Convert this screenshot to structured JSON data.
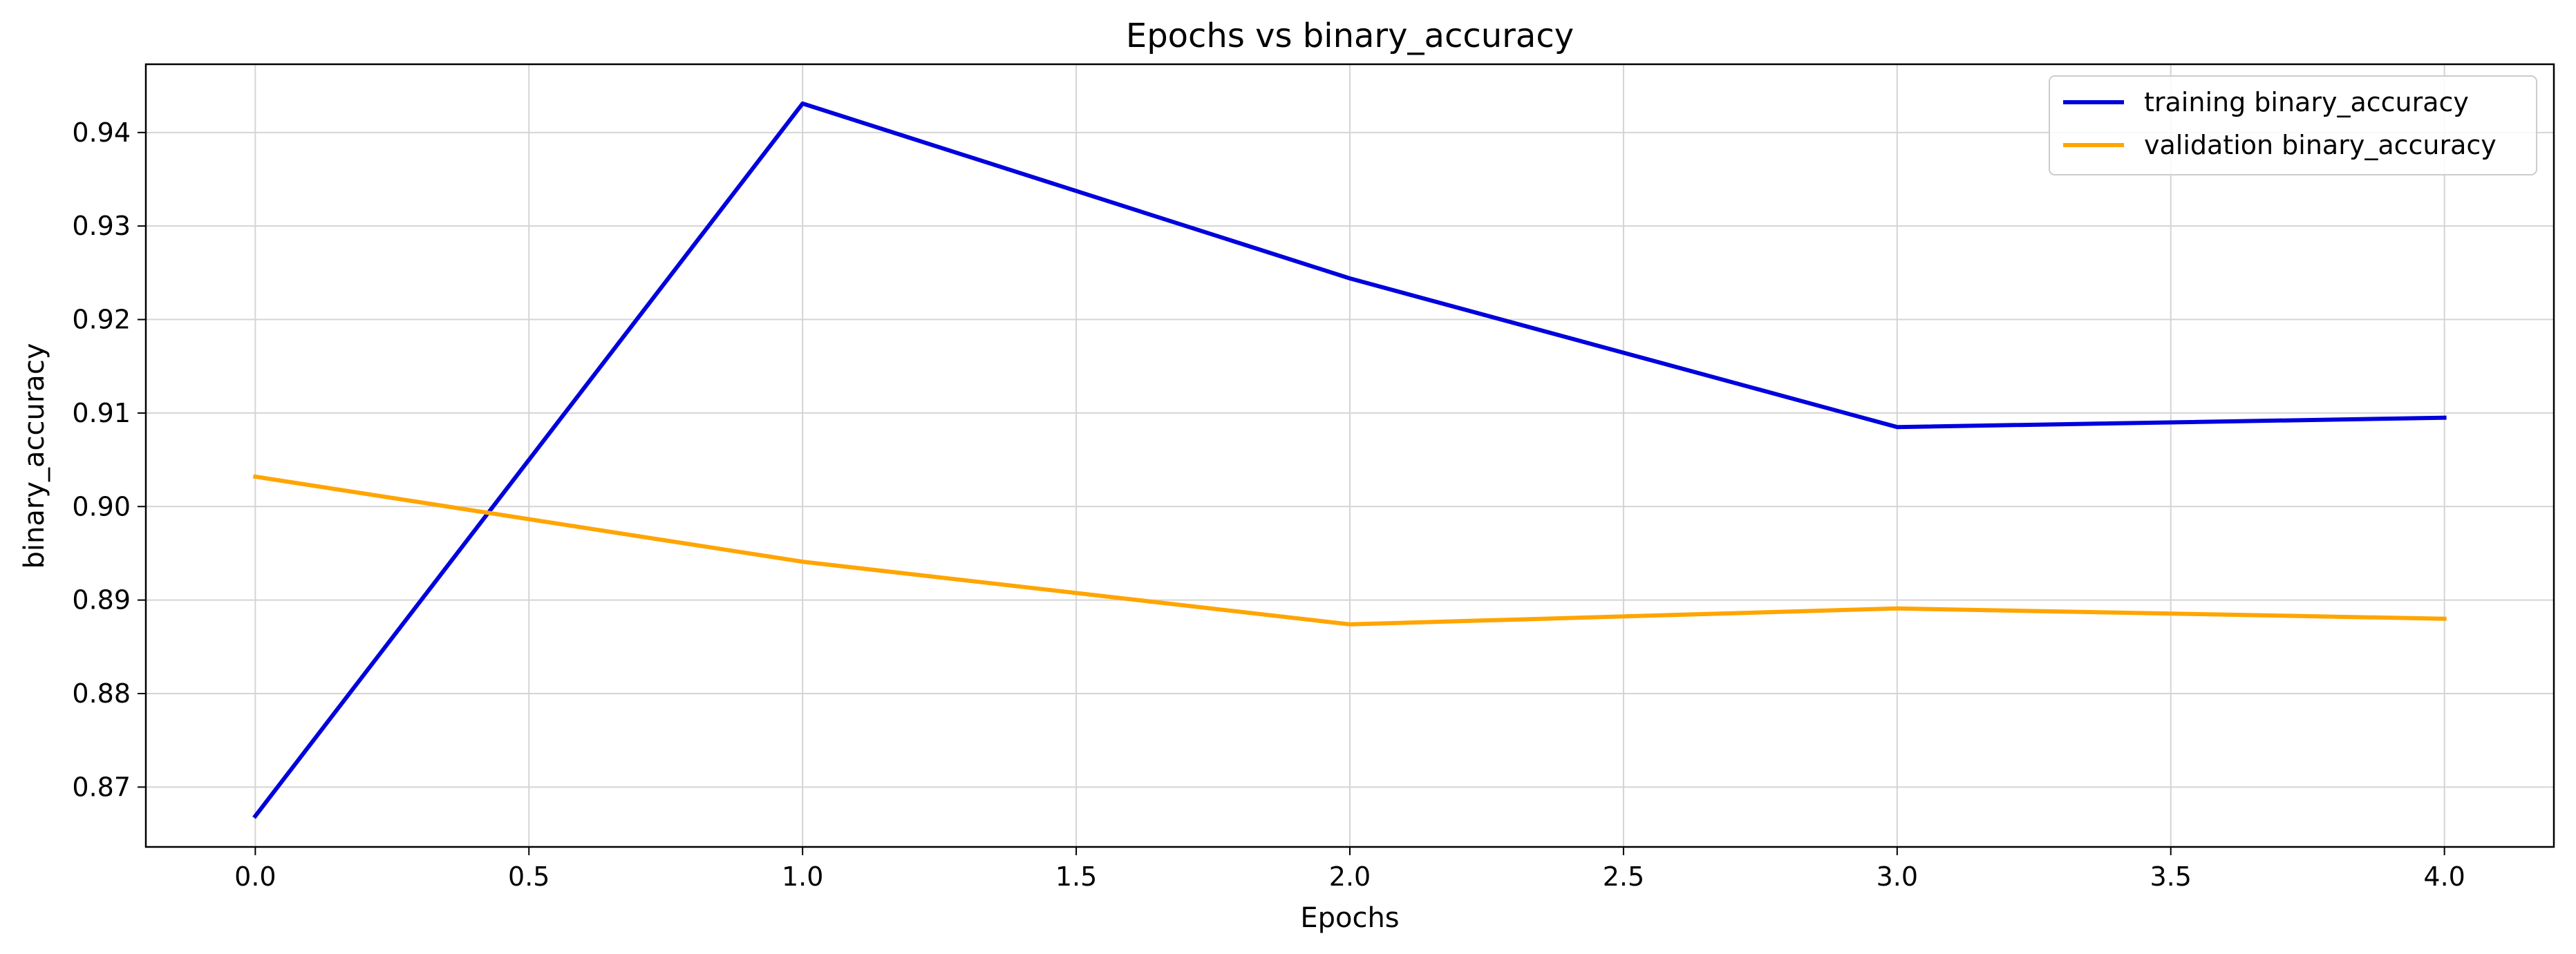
{
  "chart_data": {
    "type": "line",
    "title": "Epochs vs binary_accuracy",
    "xlabel": "Epochs",
    "ylabel": "binary_accuracy",
    "xlim": [
      -0.2,
      4.2
    ],
    "ylim": [
      0.8636,
      0.9473
    ],
    "x_ticks": [
      0.0,
      0.5,
      1.0,
      1.5,
      2.0,
      2.5,
      3.0,
      3.5,
      4.0
    ],
    "x_tick_labels": [
      "0.0",
      "0.5",
      "1.0",
      "1.5",
      "2.0",
      "2.5",
      "3.0",
      "3.5",
      "4.0"
    ],
    "y_ticks": [
      0.87,
      0.88,
      0.89,
      0.9,
      0.91,
      0.92,
      0.93,
      0.94
    ],
    "y_tick_labels": [
      "0.87",
      "0.88",
      "0.89",
      "0.90",
      "0.91",
      "0.92",
      "0.93",
      "0.94"
    ],
    "grid": true,
    "legend_position": "top-right",
    "x": [
      0,
      1,
      2,
      3,
      4
    ],
    "series": [
      {
        "name": "training binary_accuracy",
        "color": "#0000dd",
        "values": [
          0.8669,
          0.9431,
          0.9244,
          0.9085,
          0.9095
        ]
      },
      {
        "name": "validation binary_accuracy",
        "color": "#ffa500",
        "values": [
          0.9032,
          0.8941,
          0.8874,
          0.8891,
          0.888
        ]
      }
    ]
  }
}
